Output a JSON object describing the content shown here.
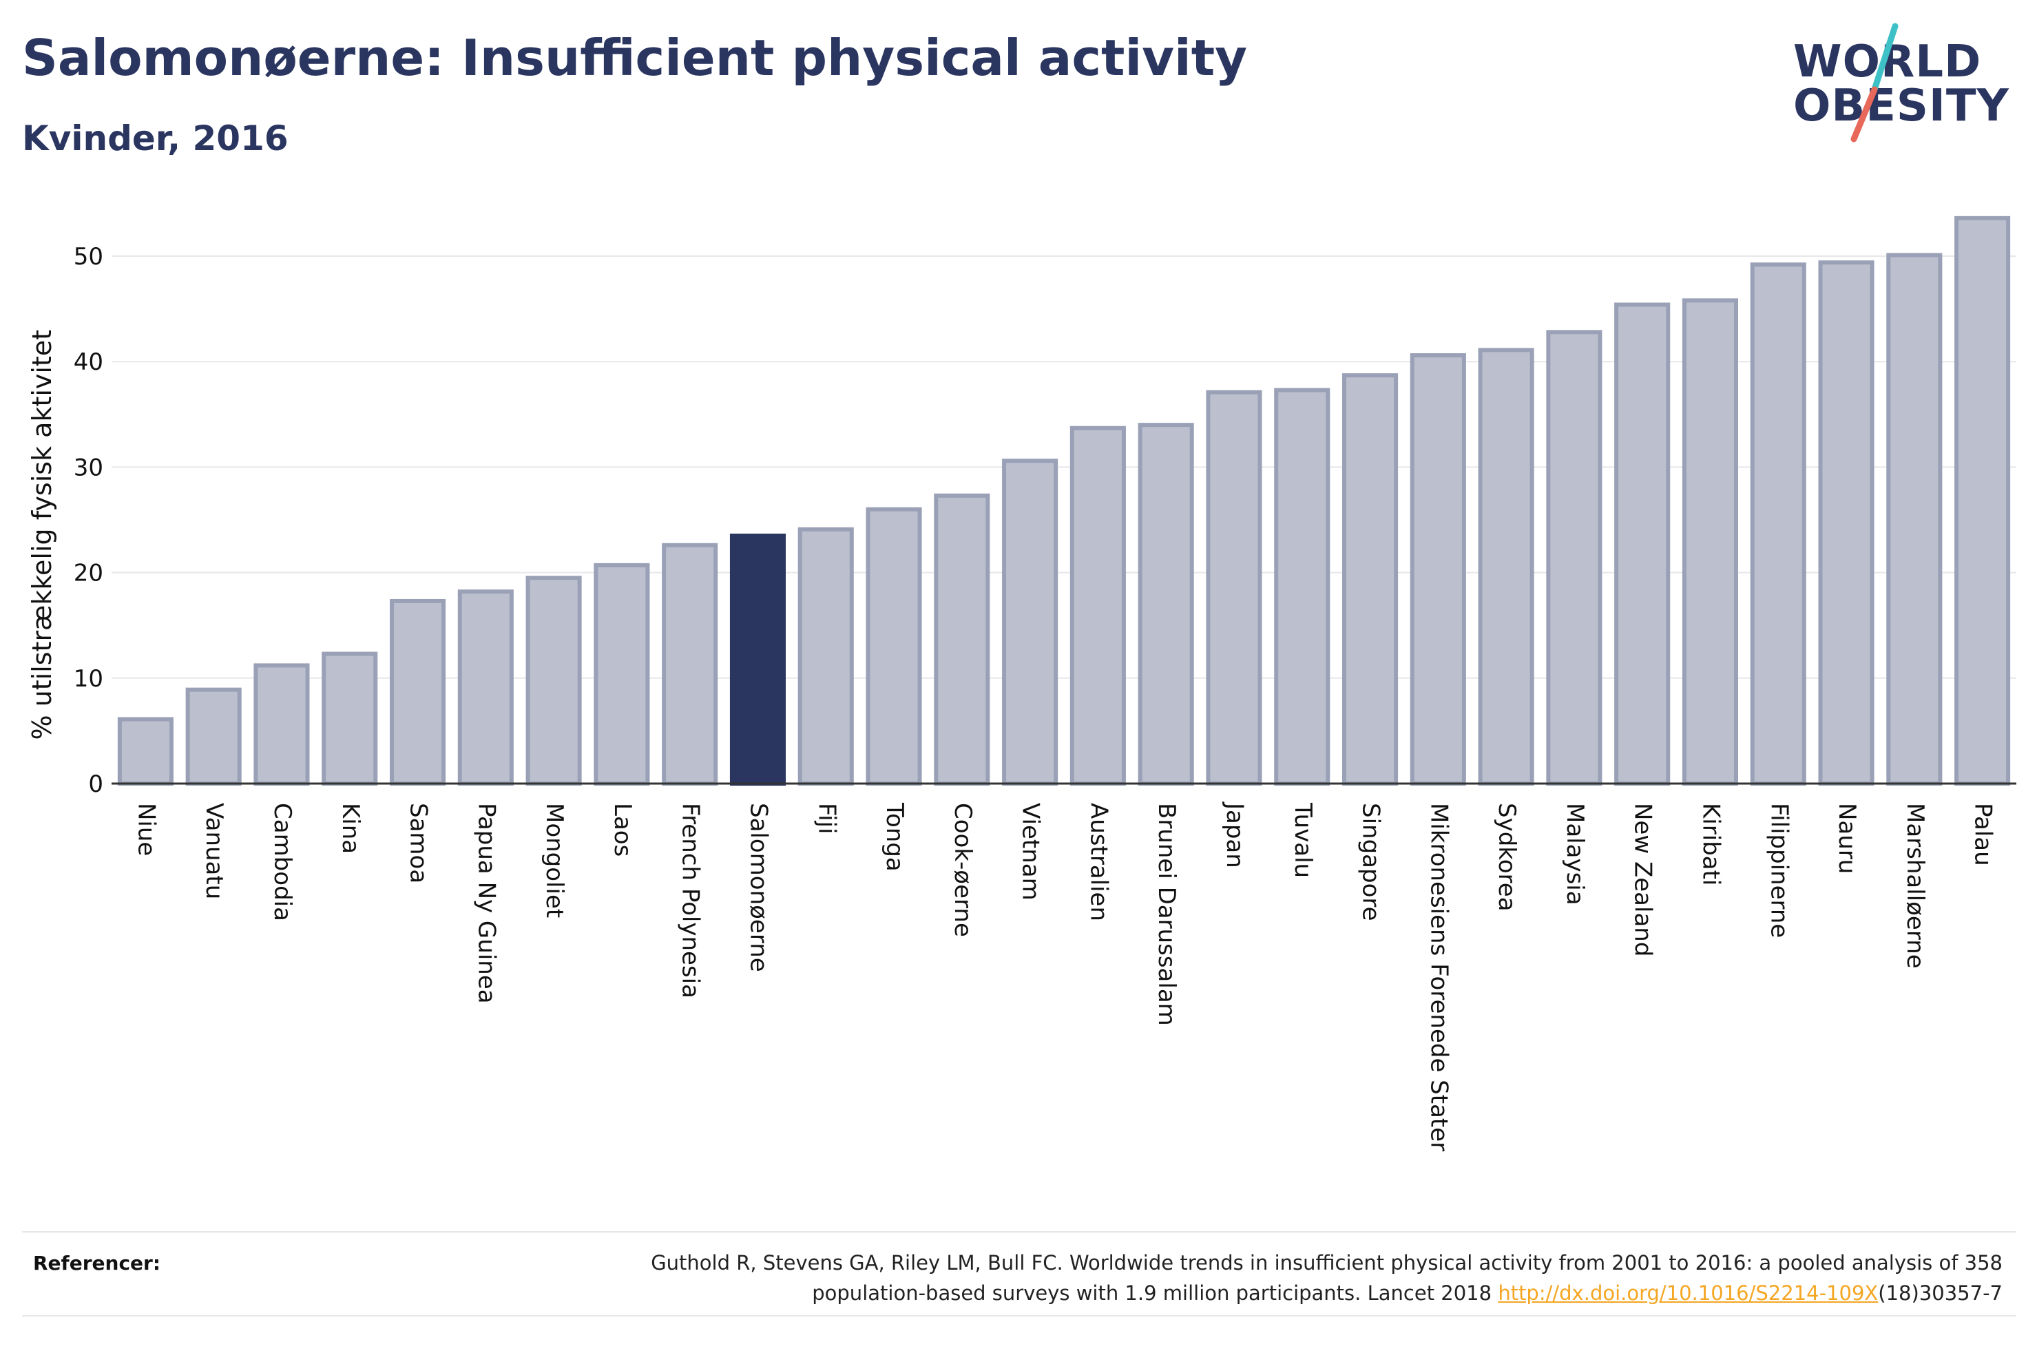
{
  "header": {
    "title": "Salomonøerne: Insufficient physical activity",
    "subtitle": "Kvinder, 2016"
  },
  "logo": {
    "line1": "WORLD",
    "line2": "OBESITY",
    "slash_colors": [
      "#3ec1c6",
      "#e8685a"
    ]
  },
  "colors": {
    "bar_default": "#bcc0ce",
    "bar_default_stroke": "#9aa0b6",
    "bar_highlight": "#2a3560",
    "title": "#2a3560",
    "link": "#f5a623"
  },
  "chart_data": {
    "type": "bar",
    "title": "Salomonøerne: Insufficient physical activity",
    "subtitle": "Kvinder, 2016",
    "ylabel": "% utilstrækkelig fysisk aktivitet",
    "xlabel": "",
    "ylim": [
      0,
      55
    ],
    "yticks": [
      0,
      10,
      20,
      30,
      40,
      50
    ],
    "grid": true,
    "highlight": "Salomonøerne",
    "categories": [
      "Niue",
      "Vanuatu",
      "Cambodia",
      "Kina",
      "Samoa",
      "Papua Ny Guinea",
      "Mongoliet",
      "Laos",
      "French Polynesia",
      "Salomonøerne",
      "Fiji",
      "Tonga",
      "Cook-øerne",
      "Vietnam",
      "Australien",
      "Brunei Darussalam",
      "Japan",
      "Tuvalu",
      "Singapore",
      "Mikronesiens Forenede Stater",
      "Sydkorea",
      "Malaysia",
      "New Zealand",
      "Kiribati",
      "Filippinerne",
      "Nauru",
      "Marshalløerne",
      "Palau"
    ],
    "values": [
      6.1,
      8.9,
      11.2,
      12.3,
      17.3,
      18.2,
      19.5,
      20.7,
      22.6,
      23.5,
      24.1,
      26.0,
      27.3,
      30.6,
      33.7,
      34.0,
      37.1,
      37.3,
      38.7,
      40.6,
      41.1,
      42.8,
      45.4,
      45.8,
      49.2,
      49.4,
      50.1,
      53.6
    ]
  },
  "footer": {
    "ref_label": "Referencer:",
    "ref_line1": "Guthold R, Stevens GA, Riley LM, Bull FC. Worldwide trends in insufficient physical activity from 2001 to 2016: a pooled analysis of 358",
    "ref_line2_pre": "population-based surveys with 1.9 million participants. Lancet 2018 ",
    "ref_link": "http://dx.doi.org/10.1016/S2214-109X",
    "ref_line2_post": "(18)30357-7"
  }
}
